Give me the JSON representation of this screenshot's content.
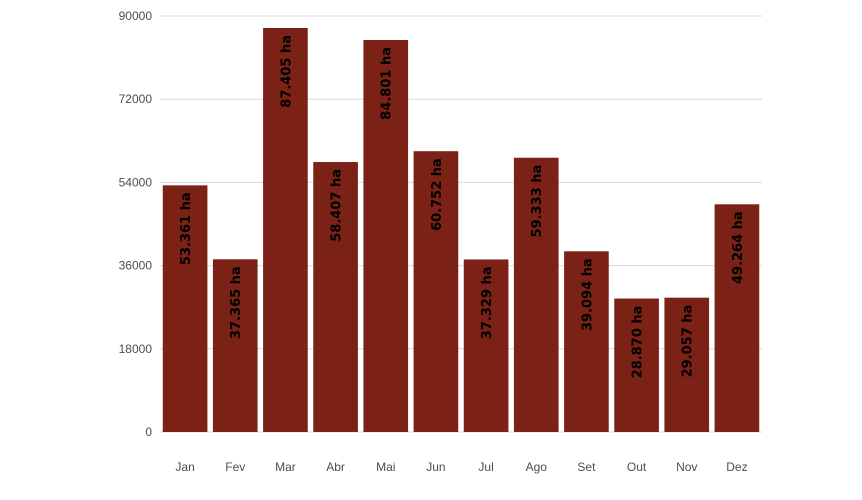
{
  "chart_data": {
    "type": "bar",
    "title": "",
    "xlabel": "",
    "ylabel": "",
    "categories": [
      "Jan",
      "Fev",
      "Mar",
      "Abr",
      "Mai",
      "Jun",
      "Jul",
      "Ago",
      "Set",
      "Out",
      "Nov",
      "Dez"
    ],
    "values": [
      53361,
      37365,
      87405,
      58407,
      84801,
      60752,
      37329,
      59333,
      39094,
      28870,
      29057,
      49264
    ],
    "data_labels": [
      "53.361 ha",
      "37.365 ha",
      "87.405 ha",
      "58.407 ha",
      "84.801 ha",
      "60.752 ha",
      "37.329 ha",
      "59.333 ha",
      "39.094 ha",
      "28.870 ha",
      "29.057 ha",
      "49.264 ha"
    ],
    "ylim": [
      0,
      90000
    ],
    "yticks": [
      0,
      18000,
      36000,
      54000,
      72000,
      90000
    ],
    "ytick_labels": [
      "0",
      "18000",
      "36000",
      "54000",
      "72000",
      "90000"
    ],
    "bar_color": "#7b2116",
    "grid": true,
    "legend": "none"
  }
}
